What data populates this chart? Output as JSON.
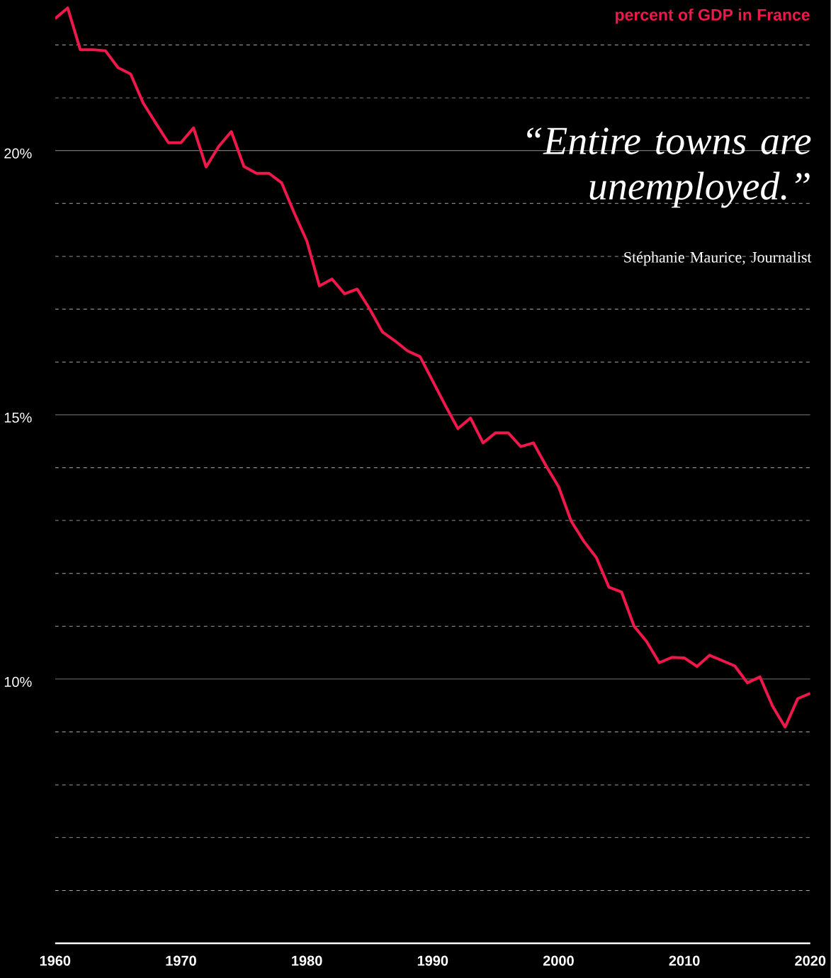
{
  "chart_data": {
    "type": "line",
    "title": "percent of GDP in France",
    "annotations": [
      "“Entire towns are unemployed.”",
      "Stéphanie Maurice, Journalist"
    ],
    "x": [
      1960,
      1961,
      1962,
      1963,
      1964,
      1965,
      1966,
      1967,
      1968,
      1969,
      1970,
      1971,
      1972,
      1973,
      1974,
      1975,
      1976,
      1977,
      1978,
      1979,
      1980,
      1981,
      1982,
      1983,
      1984,
      1985,
      1986,
      1987,
      1988,
      1989,
      1990,
      1991,
      1992,
      1993,
      1994,
      1995,
      1996,
      1997,
      1998,
      1999,
      2000,
      2001,
      2002,
      2003,
      2004,
      2005,
      2006,
      2007,
      2008,
      2009,
      2010,
      2011,
      2012,
      2013,
      2014,
      2015,
      2016,
      2017,
      2018,
      2019,
      2020
    ],
    "series": [
      {
        "color": "#f0174a",
        "values": [
          22.5,
          22.7,
          21.91,
          21.91,
          21.89,
          21.57,
          21.45,
          20.9,
          20.52,
          20.15,
          20.15,
          20.43,
          19.69,
          20.08,
          20.36,
          19.7,
          19.57,
          19.57,
          19.39,
          18.82,
          18.29,
          17.44,
          17.57,
          17.29,
          17.38,
          17.0,
          16.57,
          16.4,
          16.21,
          16.1,
          15.64,
          15.18,
          14.74,
          14.94,
          14.47,
          14.66,
          14.66,
          14.4,
          14.47,
          14.04,
          13.64,
          12.99,
          12.61,
          12.3,
          11.74,
          11.65,
          11.0,
          10.71,
          10.31,
          10.41,
          10.4,
          10.24,
          10.45,
          10.35,
          10.25,
          9.93,
          10.04,
          9.49,
          9.09,
          9.63,
          9.73
        ]
      }
    ],
    "xlim": [
      1960,
      2020
    ],
    "xticks": [
      1960,
      1970,
      1980,
      1990,
      2000,
      2010,
      2020
    ],
    "ylim": [
      5,
      22.85
    ],
    "yticks": [
      {
        "value": 6,
        "label": null
      },
      {
        "value": 7,
        "label": null
      },
      {
        "value": 8,
        "label": null
      },
      {
        "value": 9,
        "label": null
      },
      {
        "value": 10,
        "label": "10%"
      },
      {
        "value": 11,
        "label": null
      },
      {
        "value": 12,
        "label": null
      },
      {
        "value": 13,
        "label": null
      },
      {
        "value": 14,
        "label": null
      },
      {
        "value": 15,
        "label": "15%"
      },
      {
        "value": 16,
        "label": null
      },
      {
        "value": 17,
        "label": null
      },
      {
        "value": 18,
        "label": null
      },
      {
        "value": 19,
        "label": null
      },
      {
        "value": 20,
        "label": "20%"
      },
      {
        "value": 21,
        "label": null
      },
      {
        "value": 22,
        "label": null
      }
    ],
    "grid": true,
    "line_style": "solid"
  }
}
